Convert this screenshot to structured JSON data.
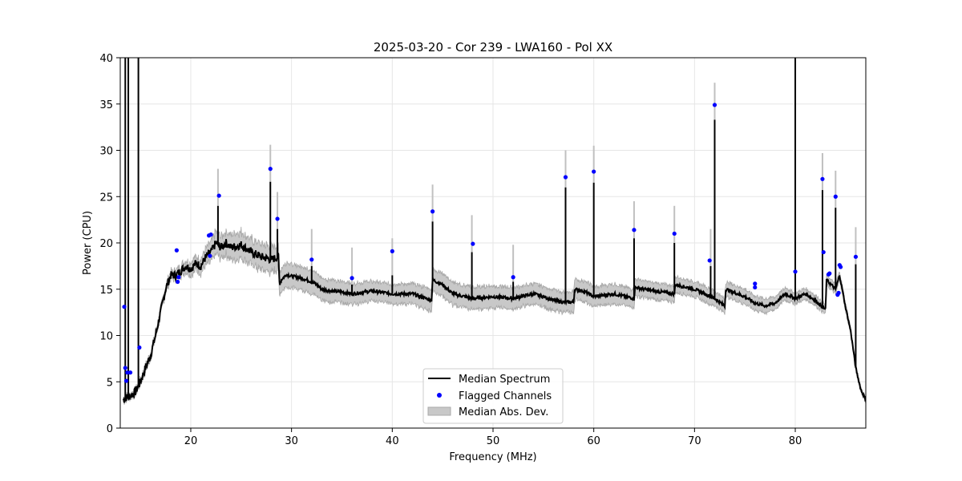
{
  "chart_data": {
    "type": "line",
    "title": "2025-03-20 - Cor 239 - LWA160 - Pol XX",
    "xlabel": "Frequency (MHz)",
    "ylabel": "Power (CPU)",
    "xlim": [
      13,
      87
    ],
    "ylim": [
      0,
      40
    ],
    "xticks": [
      20,
      30,
      40,
      50,
      60,
      70,
      80
    ],
    "xtick_labels": [
      "20",
      "30",
      "40",
      "50",
      "60",
      "70",
      "80"
    ],
    "yticks": [
      0,
      5,
      10,
      15,
      20,
      25,
      30,
      35,
      40
    ],
    "ytick_labels": [
      "0",
      "5",
      "10",
      "15",
      "20",
      "25",
      "30",
      "35",
      "40"
    ],
    "grid": true,
    "legend_position": "bottom-center",
    "legend": [
      "Median Spectrum",
      "Flagged Channels",
      "Median Abs. Dev."
    ],
    "series": [
      {
        "name": "Median Spectrum",
        "color": "#000000",
        "baseline": [
          [
            13.3,
            3.0
          ],
          [
            13.6,
            3.3
          ],
          [
            14.0,
            3.5
          ],
          [
            14.5,
            3.9
          ],
          [
            15.0,
            5.0
          ],
          [
            15.5,
            6.5
          ],
          [
            16.0,
            7.8
          ],
          [
            16.5,
            10.0
          ],
          [
            17.0,
            12.5
          ],
          [
            17.5,
            15.0
          ],
          [
            18.0,
            16.5
          ],
          [
            18.5,
            16.5
          ],
          [
            19.0,
            17.0
          ],
          [
            19.5,
            17.5
          ],
          [
            20.0,
            17.2
          ],
          [
            20.5,
            17.8
          ],
          [
            21.0,
            17.5
          ],
          [
            21.5,
            18.5
          ],
          [
            22.0,
            19.0
          ],
          [
            22.5,
            20.0
          ],
          [
            23.0,
            19.5
          ],
          [
            23.5,
            20.0
          ],
          [
            24.0,
            19.5
          ],
          [
            25.0,
            19.8
          ],
          [
            26.0,
            19.0
          ],
          [
            27.0,
            18.5
          ],
          [
            28.0,
            18.2
          ],
          [
            28.7,
            18.5
          ],
          [
            28.8,
            15.8
          ],
          [
            29.5,
            16.6
          ],
          [
            30.0,
            16.4
          ],
          [
            31.0,
            16.2
          ],
          [
            32.0,
            15.8
          ],
          [
            32.5,
            15.5
          ],
          [
            33.0,
            15.0
          ],
          [
            34.0,
            14.8
          ],
          [
            35.0,
            14.7
          ],
          [
            36.0,
            14.5
          ],
          [
            38.0,
            14.8
          ],
          [
            40.0,
            14.5
          ],
          [
            42.0,
            14.5
          ],
          [
            43.9,
            13.8
          ],
          [
            44.0,
            16.0
          ],
          [
            45.0,
            15.5
          ],
          [
            46.0,
            14.5
          ],
          [
            48.0,
            14.0
          ],
          [
            50.0,
            14.2
          ],
          [
            52.0,
            14.0
          ],
          [
            54.0,
            14.5
          ],
          [
            55.0,
            14.2
          ],
          [
            56.0,
            13.8
          ],
          [
            57.0,
            13.6
          ],
          [
            58.0,
            13.6
          ],
          [
            58.1,
            15.0
          ],
          [
            59.0,
            14.8
          ],
          [
            60.0,
            14.2
          ],
          [
            62.0,
            14.5
          ],
          [
            64.0,
            14.0
          ],
          [
            64.1,
            15.2
          ],
          [
            65.0,
            15.0
          ],
          [
            66.0,
            14.8
          ],
          [
            68.0,
            14.5
          ],
          [
            68.1,
            15.5
          ],
          [
            70.0,
            15.0
          ],
          [
            71.0,
            14.5
          ],
          [
            72.0,
            14.0
          ],
          [
            73.0,
            13.2
          ],
          [
            73.1,
            15.0
          ],
          [
            75.0,
            14.2
          ],
          [
            76.0,
            13.5
          ],
          [
            77.0,
            13.2
          ],
          [
            78.0,
            13.5
          ],
          [
            79.0,
            14.5
          ],
          [
            80.0,
            14.0
          ],
          [
            81.0,
            14.5
          ],
          [
            82.0,
            13.8
          ],
          [
            83.0,
            12.8
          ],
          [
            83.1,
            16.0
          ],
          [
            84.0,
            15.0
          ],
          [
            84.4,
            16.5
          ],
          [
            85.0,
            13.0
          ],
          [
            85.5,
            10.5
          ],
          [
            86.0,
            6.5
          ],
          [
            86.5,
            4.2
          ],
          [
            87.0,
            3.0
          ]
        ],
        "spikes": [
          [
            13.5,
            40
          ],
          [
            13.8,
            40
          ],
          [
            14.8,
            40
          ],
          [
            22.7,
            24
          ],
          [
            27.9,
            26.6
          ],
          [
            28.6,
            21.5
          ],
          [
            32.0,
            17.5
          ],
          [
            36.0,
            15.5
          ],
          [
            40.0,
            16.5
          ],
          [
            44.0,
            22.3
          ],
          [
            47.9,
            19.0
          ],
          [
            52.0,
            15.8
          ],
          [
            57.2,
            26.0
          ],
          [
            60.0,
            26.5
          ],
          [
            64.0,
            20.5
          ],
          [
            68.0,
            20.0
          ],
          [
            71.6,
            17.5
          ],
          [
            72.0,
            33.3
          ],
          [
            80.0,
            40
          ],
          [
            82.7,
            25.7
          ],
          [
            84.0,
            23.8
          ],
          [
            86.0,
            17.7
          ]
        ]
      },
      {
        "name": "Flagged Channels",
        "color": "#0000ff",
        "points": [
          [
            13.4,
            13.1
          ],
          [
            13.5,
            6.5
          ],
          [
            13.6,
            5.1
          ],
          [
            13.7,
            6.0
          ],
          [
            14.0,
            6.0
          ],
          [
            14.9,
            8.7
          ],
          [
            18.6,
            19.2
          ],
          [
            18.7,
            15.8
          ],
          [
            18.8,
            16.3
          ],
          [
            21.8,
            20.8
          ],
          [
            22.0,
            20.9
          ],
          [
            21.9,
            18.6
          ],
          [
            22.8,
            25.1
          ],
          [
            27.9,
            28.0
          ],
          [
            28.6,
            22.6
          ],
          [
            32.0,
            18.2
          ],
          [
            36.0,
            16.2
          ],
          [
            40.0,
            19.1
          ],
          [
            44.0,
            23.4
          ],
          [
            48.0,
            19.9
          ],
          [
            52.0,
            16.3
          ],
          [
            57.2,
            27.1
          ],
          [
            60.0,
            27.7
          ],
          [
            64.0,
            21.4
          ],
          [
            68.0,
            21.0
          ],
          [
            71.5,
            18.1
          ],
          [
            72.0,
            34.9
          ],
          [
            76.0,
            15.6
          ],
          [
            76.0,
            15.2
          ],
          [
            80.0,
            16.9
          ],
          [
            82.7,
            26.9
          ],
          [
            82.8,
            19.0
          ],
          [
            83.3,
            16.6
          ],
          [
            83.4,
            16.7
          ],
          [
            84.0,
            25.0
          ],
          [
            84.2,
            14.4
          ],
          [
            84.3,
            14.6
          ],
          [
            84.4,
            17.6
          ],
          [
            84.5,
            17.4
          ],
          [
            86.0,
            18.5
          ]
        ]
      },
      {
        "name": "Median Abs. Dev.",
        "color": "#c8c8c8",
        "band_width": [
          [
            13.3,
            0.2
          ],
          [
            18.0,
            0.4
          ],
          [
            21.0,
            0.8
          ],
          [
            22.5,
            1.2
          ],
          [
            25.0,
            1.4
          ],
          [
            28.0,
            1.4
          ],
          [
            29.0,
            1.3
          ],
          [
            33.0,
            1.2
          ],
          [
            40.0,
            1.0
          ],
          [
            44.0,
            1.2
          ],
          [
            48.0,
            1.2
          ],
          [
            54.0,
            1.1
          ],
          [
            60.0,
            1.1
          ],
          [
            66.0,
            0.9
          ],
          [
            70.0,
            0.8
          ],
          [
            76.0,
            0.8
          ],
          [
            80.0,
            0.6
          ],
          [
            84.0,
            0.5
          ],
          [
            87.0,
            0.2
          ]
        ]
      }
    ]
  }
}
